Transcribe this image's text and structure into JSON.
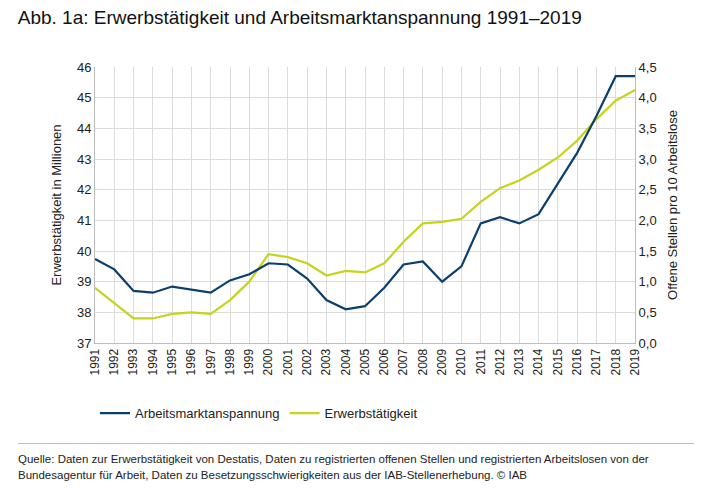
{
  "chart_data": {
    "type": "line",
    "title": "Abb. 1a: Erwerbstätigkeit und Arbeitsmarktanspannung 1991–2019",
    "y_label": "Erwerbstätigkeit in Millionen",
    "y2_label": "Offene Stellen pro 10 Arbeitslose",
    "annotations": [
      "Quelle: Daten zur Erwerbstätigkeit von Destatis, Daten zu registrierten offenen Stellen und registrierten Arbeitslosen von der Bundesagentur für Arbeit, Daten zu Besetzungsschwierigkeiten aus der IAB-Stellenerhebung. © IAB"
    ],
    "categories": [
      "1991",
      "1992",
      "1993",
      "1994",
      "1995",
      "1996",
      "1997",
      "1998",
      "1999",
      "2000",
      "2001",
      "2002",
      "2003",
      "2004",
      "2005",
      "2006",
      "2007",
      "2008",
      "2009",
      "2010",
      "2011",
      "2012",
      "2013",
      "2014",
      "2015",
      "2016",
      "2017",
      "2018",
      "2019"
    ],
    "series": [
      {
        "name": "Arbeitsmarktanspannung",
        "color": "#0d3f6e",
        "axis": "y2",
        "values": [
          1.37,
          1.2,
          0.85,
          0.82,
          0.92,
          0.87,
          0.82,
          1.02,
          1.12,
          1.3,
          1.28,
          1.05,
          0.7,
          0.55,
          0.6,
          0.9,
          1.28,
          1.33,
          1.0,
          1.25,
          1.95,
          2.05,
          1.95,
          2.1,
          2.6,
          3.1,
          3.7,
          4.35,
          4.35
        ]
      },
      {
        "name": "Erwerbstätigkeit",
        "color": "#c5d41c",
        "values": [
          38.8,
          38.3,
          37.8,
          37.8,
          37.95,
          38.0,
          37.95,
          38.4,
          39.0,
          39.9,
          39.8,
          39.6,
          39.2,
          39.35,
          39.3,
          39.6,
          40.3,
          40.9,
          40.95,
          41.05,
          41.6,
          42.05,
          42.3,
          42.65,
          43.05,
          43.6,
          44.3,
          44.9,
          45.25
        ]
      }
    ],
    "ylim": [
      37,
      46
    ],
    "yticks": [
      37,
      38,
      39,
      40,
      41,
      42,
      43,
      44,
      45,
      46
    ],
    "y2lim": [
      0,
      4.5
    ],
    "y2ticks": [
      {
        "value": 0,
        "label": "0,0"
      },
      {
        "value": 0.5,
        "label": "0,5"
      },
      {
        "value": 1,
        "label": "1,0"
      },
      {
        "value": 1.5,
        "label": "1,5"
      },
      {
        "value": 2,
        "label": "2,0"
      },
      {
        "value": 2.5,
        "label": "2,5"
      },
      {
        "value": 3,
        "label": "3,0"
      },
      {
        "value": 3.5,
        "label": "3,5"
      },
      {
        "value": 4,
        "label": "4,0"
      },
      {
        "value": 4.5,
        "label": "4,5"
      }
    ],
    "grid": true,
    "legend": "bottom"
  }
}
